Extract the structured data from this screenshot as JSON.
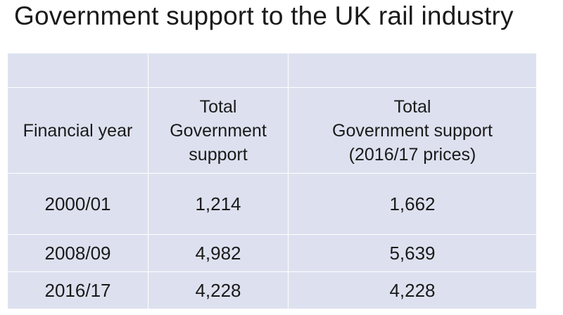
{
  "title": "Government support to the UK rail industry",
  "table": {
    "headers": {
      "col1": [
        "Financial year"
      ],
      "col2": [
        "Total",
        "Government",
        "support"
      ],
      "col3": [
        "Total",
        "Government support",
        "(2016/17 prices)"
      ]
    },
    "rows": [
      {
        "year": "2000/01",
        "support": "1,214",
        "support_2016_prices": "1,662"
      },
      {
        "year": "2008/09",
        "support": "4,982",
        "support_2016_prices": "5,639"
      },
      {
        "year": "2016/17",
        "support": "4,228",
        "support_2016_prices": "4,228"
      }
    ]
  }
}
